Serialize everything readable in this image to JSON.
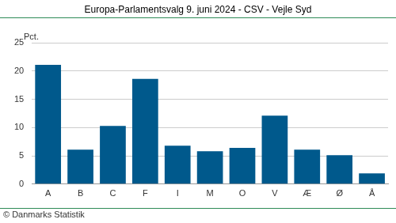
{
  "chart_data": {
    "type": "bar",
    "title": "Europa-Parlamentsvalg 9. juni 2024 - CSV - Vejle Syd",
    "ylabel": "Pct.",
    "source": "© Danmarks Statistik",
    "categories": [
      "A",
      "B",
      "C",
      "F",
      "I",
      "M",
      "O",
      "V",
      "Æ",
      "Ø",
      "Å"
    ],
    "values": [
      21.1,
      6.1,
      10.3,
      18.6,
      6.8,
      5.8,
      6.4,
      12.1,
      6.1,
      5.1,
      1.9
    ],
    "color": "#00598c",
    "ylim": [
      0,
      25
    ],
    "yticks": [
      0,
      5,
      10,
      15,
      20,
      25
    ],
    "grid": true
  }
}
